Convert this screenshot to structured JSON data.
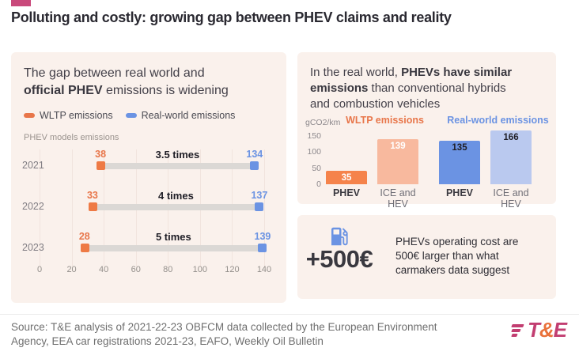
{
  "title": "Polluting and costly: growing gap between PHEV claims and reality",
  "colors": {
    "accent_pink": "#c9497b",
    "panel_bg": "#faf1ec",
    "orange": "#e8764a",
    "orange_bar": "#f5834b",
    "orange_light": "#f8b99e",
    "blue": "#6b93e3",
    "blue_light": "#bac9ef",
    "track_gray": "#dbd8d5"
  },
  "left_panel": {
    "heading": {
      "line1": "The gap between real world and",
      "line2_bold": "official PHEV",
      "line2_rest": " emissions is widening"
    }
  },
  "chart_data": [
    {
      "type": "dumbbell",
      "title": "PHEV models emissions",
      "categories": [
        "2021",
        "2022",
        "2023"
      ],
      "series": [
        {
          "name": "WLTP emissions",
          "color": "#e8764a",
          "bar_color": "#ee7a45",
          "values": [
            38,
            33,
            28
          ]
        },
        {
          "name": "Real-world emissions",
          "color": "#6b93e3",
          "bar_color": "#6b93e3",
          "values": [
            134,
            137,
            139
          ]
        }
      ],
      "gap_labels": [
        "3.5 times",
        "4 times",
        "5 times"
      ],
      "xlim": [
        0,
        140
      ],
      "xticks": [
        0,
        20,
        40,
        60,
        80,
        100,
        120,
        140
      ]
    },
    {
      "type": "bar",
      "ylabel": "gCO2/km",
      "yticks": [
        0,
        50,
        100,
        150
      ],
      "ylim": [
        0,
        175
      ],
      "groups": [
        {
          "name": "WLTP emissions",
          "label_color": "#e8764a"
        },
        {
          "name": "Real-world emissions",
          "label_color": "#6b93e3"
        }
      ],
      "bars": [
        {
          "group": "WLTP emissions",
          "category": "PHEV",
          "value": 35,
          "color": "#f5834b",
          "value_color": "#ffffff",
          "bold_category": true
        },
        {
          "group": "WLTP emissions",
          "category": "ICE and HEV",
          "value": 139,
          "color": "#f8b99e",
          "value_color": "#ffffff",
          "bold_category": false
        },
        {
          "group": "Real-world emissions",
          "category": "PHEV",
          "value": 135,
          "color": "#6b93e3",
          "value_color": "#1f1e26",
          "bold_category": true
        },
        {
          "group": "Real-world emissions",
          "category": "ICE and HEV",
          "value": 166,
          "color": "#bac9ef",
          "value_color": "#1f1e26",
          "bold_category": false
        }
      ]
    }
  ],
  "right_top_panel": {
    "heading": {
      "line1_pre": "In the real world, ",
      "line1_bold": "PHEVs have similar",
      "line2_bold": "emissions",
      "line2_rest": " than conventional hybrids",
      "line3": "and combustion vehicles"
    }
  },
  "right_bottom_panel": {
    "icon": "fuel-pump-icon",
    "amount": "+500€",
    "description": "PHEVs operating cost are 500€ larger than what carmakers data suggest"
  },
  "footer": {
    "source": "Source: T&E analysis of 2021-22-23 OBFCM data collected by the European Environment Agency, EEA car registrations 2021-23, EAFO, Weekly Oil Bulletin",
    "logo": {
      "t": "T",
      "amp": "&",
      "e": "E"
    }
  }
}
